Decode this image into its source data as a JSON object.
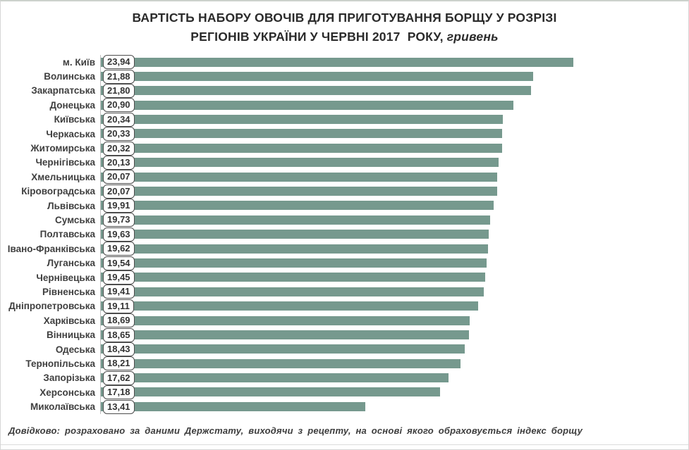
{
  "title": {
    "line1": "ВАРТІСТЬ НАБОРУ ОВОЧІВ ДЛЯ ПРИГОТУВАННЯ БОРЩУ У РОЗРІЗІ",
    "line2_main": "РЕГІОНІВ УКРАЇНИ У ЧЕРВНІ 2017  РОКУ, ",
    "line2_italic": "гривень"
  },
  "footer": {
    "note": "Довідково:  розраховано за даними Держстату,  виходячи з рецепту,  на основі якого  обраховується  індекс борщу"
  },
  "chart_data": {
    "type": "bar",
    "orientation": "horizontal",
    "title": "ВАРТІСТЬ НАБОРУ ОВОЧІВ ДЛЯ ПРИГОТУВАННЯ БОРЩУ У РОЗРІЗІ РЕГІОНІВ УКРАЇНИ У ЧЕРВНІ 2017 РОКУ, гривень",
    "unit": "гривень",
    "xlim": [
      0,
      24
    ],
    "grid": false,
    "legend": "none",
    "bar_color": "#76998E",
    "categories": [
      "м. Київ",
      "Волинська",
      "Закарпатська",
      "Донецька",
      "Київська",
      "Черкаська",
      "Житомирська",
      "Чернігівська",
      "Хмельницька",
      "Кіровоградська",
      "Львівська",
      "Сумська",
      "Полтавська",
      "Івано-Франківська",
      "Луганська",
      "Чернівецька",
      "Рівненська",
      "Дніпропетровська",
      "Харківська",
      "Вінницька",
      "Одеська",
      "Тернопільська",
      "Запорізька",
      "Херсонська",
      "Миколаївська"
    ],
    "values": [
      23.94,
      21.88,
      21.8,
      20.9,
      20.34,
      20.33,
      20.32,
      20.13,
      20.07,
      20.07,
      19.91,
      19.73,
      19.63,
      19.62,
      19.54,
      19.45,
      19.41,
      19.11,
      18.69,
      18.65,
      18.43,
      18.21,
      17.62,
      17.18,
      13.41
    ],
    "value_labels": [
      "23,94",
      "21,88",
      "21,80",
      "20,90",
      "20,34",
      "20,33",
      "20,32",
      "20,13",
      "20,07",
      "20,07",
      "19,91",
      "19,73",
      "19,63",
      "19,62",
      "19,54",
      "19,45",
      "19,41",
      "19,11",
      "18,69",
      "18,65",
      "18,43",
      "18,21",
      "17,62",
      "17,18",
      "13,41"
    ]
  }
}
